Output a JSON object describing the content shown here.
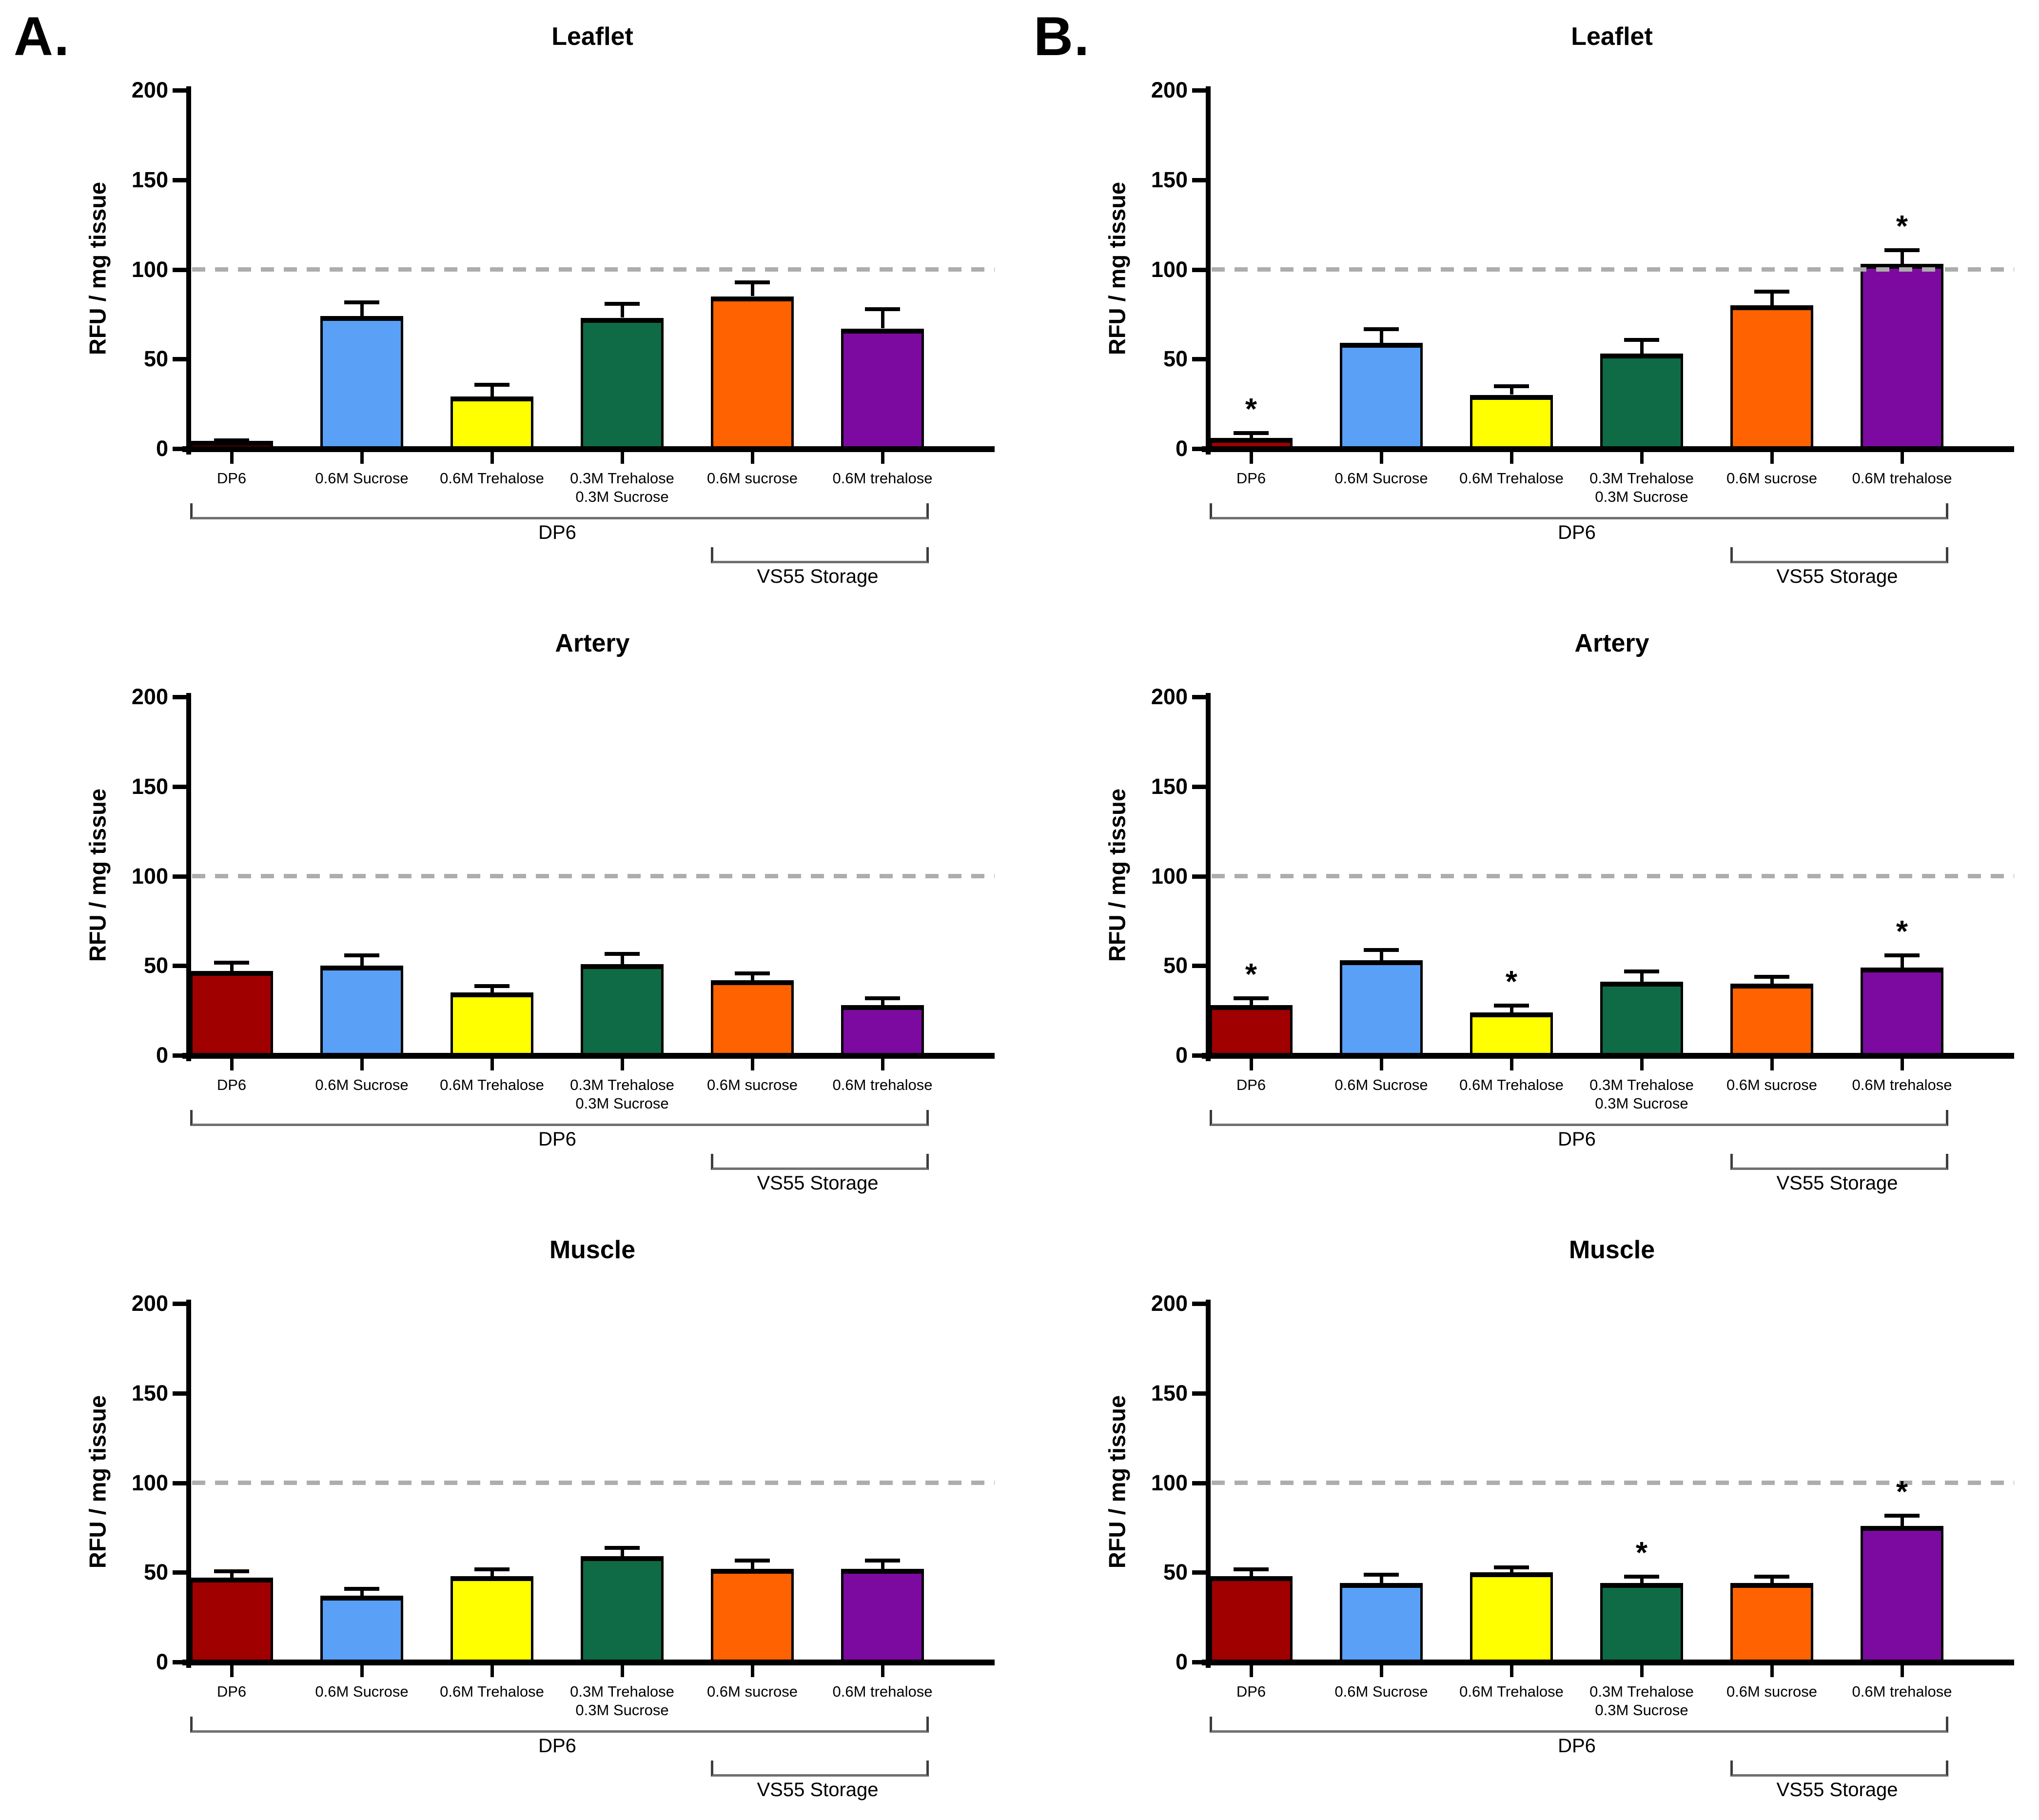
{
  "panel_labels": [
    "A.",
    "B."
  ],
  "sig_marker": "*",
  "axis": {
    "ylabel": "RFU / mg tissue",
    "yticks": [
      0,
      50,
      100,
      150,
      200
    ],
    "ylim": [
      0,
      200
    ],
    "reference_line_y": 100
  },
  "categories": [
    "DP6",
    "0.6M Sucrose",
    "0.6M Trehalose",
    "0.3M Trehalose\n0.3M Sucrose",
    "0.6M sucrose",
    "0.6M trehalose"
  ],
  "bar_colors": [
    "#a00000",
    "#59a0f6",
    "#ffff00",
    "#0e6b45",
    "#ff6200",
    "#7d0aa0"
  ],
  "reference_line_color": "#adadad",
  "brackets": [
    {
      "label": "DP6",
      "from": 0,
      "to": 5
    },
    {
      "label": "VS55 Storage",
      "from": 4,
      "to": 5
    }
  ],
  "chart_data": [
    {
      "panel": "A",
      "tissue": "Leaflet",
      "type": "bar",
      "xlabel": "",
      "ylabel": "RFU / mg tissue",
      "ylim": [
        0,
        200
      ],
      "grid": false,
      "categories": [
        "DP6",
        "0.6M Sucrose",
        "0.6M Trehalose",
        "0.3M Trehalose 0.3M Sucrose",
        "0.6M sucrose",
        "0.6M trehalose"
      ],
      "values": [
        3,
        74,
        29,
        73,
        85,
        67
      ],
      "errors": [
        2,
        8,
        7,
        8,
        8,
        11
      ],
      "significant": [
        false,
        false,
        false,
        false,
        false,
        false
      ]
    },
    {
      "panel": "A",
      "tissue": "Artery",
      "type": "bar",
      "xlabel": "",
      "ylabel": "RFU / mg tissue",
      "ylim": [
        0,
        200
      ],
      "grid": false,
      "categories": [
        "DP6",
        "0.6M Sucrose",
        "0.6M Trehalose",
        "0.3M Trehalose 0.3M Sucrose",
        "0.6M sucrose",
        "0.6M trehalose"
      ],
      "values": [
        47,
        50,
        35,
        51,
        42,
        28
      ],
      "errors": [
        5,
        6,
        4,
        6,
        4,
        4
      ],
      "significant": [
        false,
        false,
        false,
        false,
        false,
        false
      ]
    },
    {
      "panel": "A",
      "tissue": "Muscle",
      "type": "bar",
      "xlabel": "",
      "ylabel": "RFU / mg tissue",
      "ylim": [
        0,
        200
      ],
      "grid": false,
      "categories": [
        "DP6",
        "0.6M Sucrose",
        "0.6M Trehalose",
        "0.3M Trehalose 0.3M Sucrose",
        "0.6M sucrose",
        "0.6M trehalose"
      ],
      "values": [
        47,
        37,
        48,
        59,
        52,
        52
      ],
      "errors": [
        4,
        4,
        4,
        5,
        5,
        5
      ],
      "significant": [
        false,
        false,
        false,
        false,
        false,
        false
      ]
    },
    {
      "panel": "B",
      "tissue": "Leaflet",
      "type": "bar",
      "xlabel": "",
      "ylabel": "RFU / mg tissue",
      "ylim": [
        0,
        200
      ],
      "grid": false,
      "categories": [
        "DP6",
        "0.6M Sucrose",
        "0.6M Trehalose",
        "0.3M Trehalose 0.3M Sucrose",
        "0.6M sucrose",
        "0.6M trehalose"
      ],
      "values": [
        6,
        59,
        30,
        53,
        80,
        103
      ],
      "errors": [
        3,
        8,
        5,
        8,
        8,
        8
      ],
      "significant": [
        true,
        false,
        false,
        false,
        false,
        true
      ]
    },
    {
      "panel": "B",
      "tissue": "Artery",
      "type": "bar",
      "xlabel": "",
      "ylabel": "RFU / mg tissue",
      "ylim": [
        0,
        200
      ],
      "grid": false,
      "categories": [
        "DP6",
        "0.6M Sucrose",
        "0.6M Trehalose",
        "0.3M Trehalose 0.3M Sucrose",
        "0.6M sucrose",
        "0.6M trehalose"
      ],
      "values": [
        28,
        53,
        24,
        41,
        40,
        49
      ],
      "errors": [
        4,
        6,
        4,
        6,
        4,
        7
      ],
      "significant": [
        true,
        false,
        true,
        false,
        false,
        true
      ]
    },
    {
      "panel": "B",
      "tissue": "Muscle",
      "type": "bar",
      "xlabel": "",
      "ylabel": "RFU / mg tissue",
      "ylim": [
        0,
        200
      ],
      "grid": false,
      "categories": [
        "DP6",
        "0.6M Sucrose",
        "0.6M Trehalose",
        "0.3M Trehalose 0.3M Sucrose",
        "0.6M sucrose",
        "0.6M trehalose"
      ],
      "values": [
        48,
        44,
        50,
        44,
        44,
        76
      ],
      "errors": [
        4,
        5,
        3,
        4,
        4,
        6
      ],
      "significant": [
        false,
        false,
        false,
        true,
        false,
        true
      ]
    }
  ]
}
